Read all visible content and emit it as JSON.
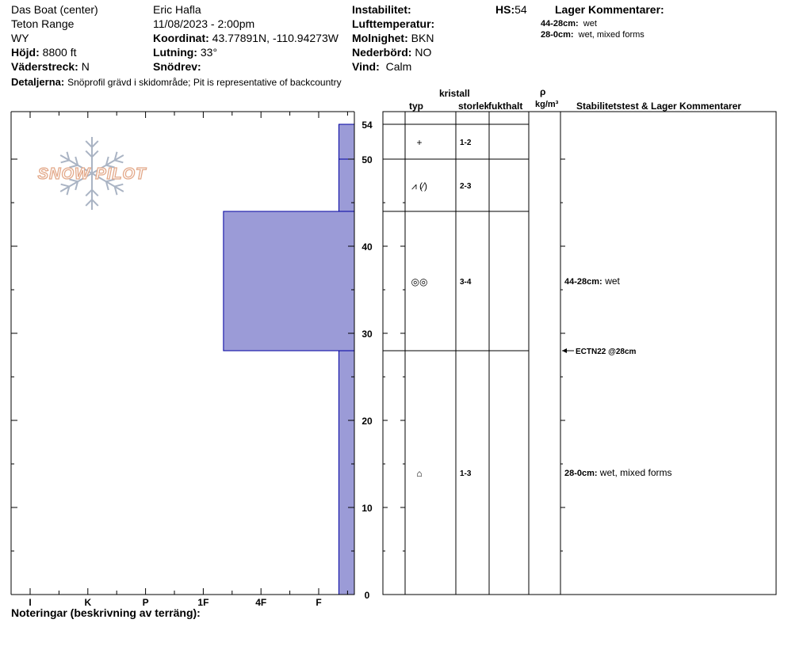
{
  "header": {
    "location": "Das Boat (center)",
    "range": "Teton Range",
    "state": "WY",
    "elevation_label": "Höjd:",
    "elevation_value": "8800 ft",
    "aspect_label": "Väderstreck:",
    "aspect_value": "N",
    "details_label": "Detaljerna:",
    "details_value": "Snöprofil grävd i skidområde;  Pit is representative of backcountry",
    "observer": "Eric Hafla",
    "datetime": "11/08/2023 - 2:00pm",
    "coord_label": "Koordinat:",
    "coord_value": "43.77891N, -110.94273W",
    "slope_label": "Lutning:",
    "slope_value": "33°",
    "drift_label": "Snödrev:",
    "instability_label": "Instabilitet:",
    "airtemp_label": "Lufttemperatur:",
    "sky_label": "Molnighet:",
    "sky_value": "BKN",
    "precip_label": "Nederbörd:",
    "precip_value": "NO",
    "wind_label": "Vind:",
    "wind_value": "Calm",
    "hs_label": "HS:",
    "hs_value": "54",
    "layer_comments_title": "Lager Kommentarer:",
    "layer_comments": [
      {
        "range": "44-28cm:",
        "text": "wet"
      },
      {
        "range": "28-0cm:",
        "text": "wet, mixed forms"
      }
    ],
    "logo_text": "SNOW PILOT"
  },
  "columns": {
    "crystal": "kristall",
    "type": "typ",
    "size": "storlek",
    "moisture": "fukthalt",
    "rho": "ρ",
    "density_unit": "kg/m³",
    "stability": "Stabilitetstest & Lager Kommentarer"
  },
  "footer": {
    "notes_label": "Noteringar (beskrivning av terräng):"
  },
  "chart_data": {
    "type": "bar",
    "title": "",
    "ylabel": "",
    "xlabel": "",
    "ylim": [
      0,
      55
    ],
    "y_ticks": [
      0,
      10,
      20,
      30,
      40,
      50,
      54
    ],
    "hardness_scale": [
      "I",
      "K",
      "P",
      "1F",
      "4F",
      "F"
    ],
    "layers": [
      {
        "top": 54,
        "bottom": 50,
        "hardness": "F-",
        "hardness_value": 6.35
      },
      {
        "top": 50,
        "bottom": 44,
        "hardness": "F-",
        "hardness_value": 6.35
      },
      {
        "top": 44,
        "bottom": 28,
        "hardness": "1F",
        "hardness_value": 4.35
      },
      {
        "top": 28,
        "bottom": 0,
        "hardness": "F-",
        "hardness_value": 6.35
      }
    ],
    "grain_layers": [
      {
        "top": 54,
        "bottom": 50,
        "type_symbol": "+",
        "size": "1-2"
      },
      {
        "top": 50,
        "bottom": 44,
        "type_symbol": "⩘ (⁄)",
        "size": "2-3"
      },
      {
        "top": 44,
        "bottom": 28,
        "type_symbol": "◎◎",
        "size": "3-4"
      },
      {
        "top": 28,
        "bottom": 0,
        "type_symbol": "⌂",
        "size": "1-3"
      }
    ],
    "comments": [
      {
        "depth": 36,
        "range": "44-28cm:",
        "text": "wet"
      },
      {
        "depth": 14,
        "range": "28-0cm:",
        "text": "wet, mixed forms"
      }
    ],
    "tests": [
      {
        "depth": 28,
        "label": "ECTN22 @28cm"
      }
    ],
    "colors": {
      "layer_fill": "#9b9bd7",
      "layer_stroke": "#0000a0"
    }
  }
}
